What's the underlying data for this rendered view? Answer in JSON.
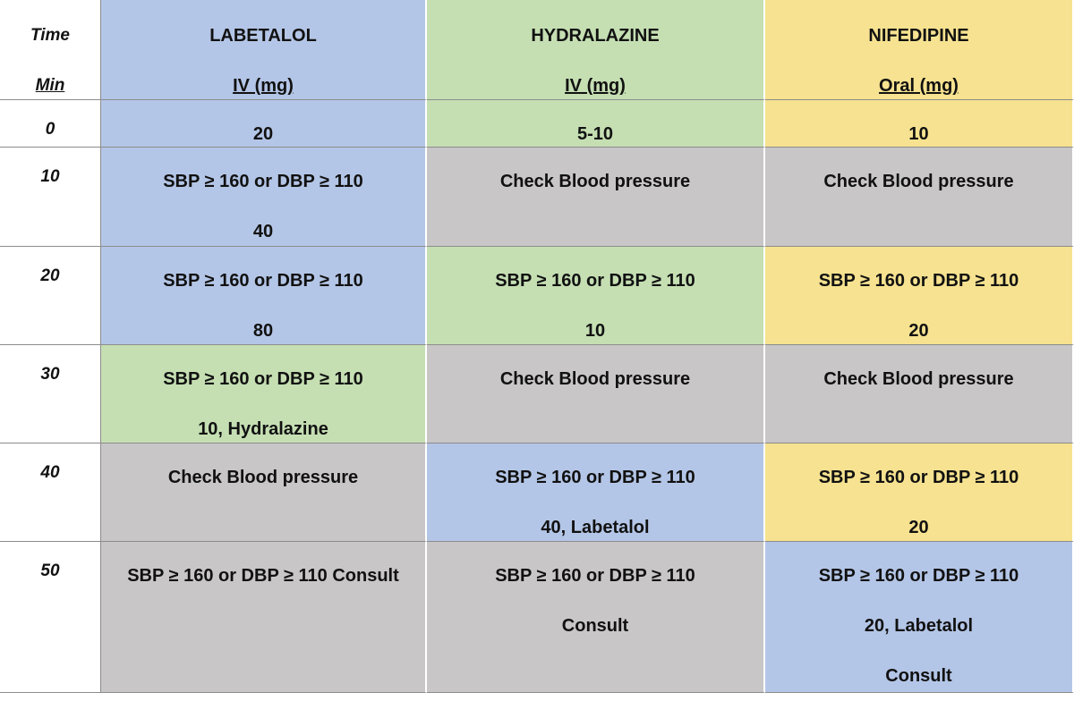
{
  "table": {
    "header": [
      {
        "lines": [
          "Time",
          "Min"
        ],
        "color": "#ffffff"
      },
      {
        "lines": [
          "LABETALOL",
          "IV (mg)"
        ],
        "color": "#b4c6e7"
      },
      {
        "lines": [
          "HYDRALAZINE",
          "IV (mg)"
        ],
        "color": "#c5dfb3"
      },
      {
        "lines": [
          "NIFEDIPINE",
          "Oral (mg)"
        ],
        "color": "#f6e290"
      }
    ],
    "rows": [
      {
        "time": "0",
        "cells": [
          {
            "lines": [
              "20"
            ],
            "color": "#b4c6e7"
          },
          {
            "lines": [
              "5-10"
            ],
            "color": "#c5dfb3"
          },
          {
            "lines": [
              "10"
            ],
            "color": "#f6e290"
          }
        ]
      },
      {
        "time": "10",
        "cells": [
          {
            "lines": [
              "SBP ≥ 160 or DBP ≥ 110",
              "40"
            ],
            "color": "#b4c6e7"
          },
          {
            "lines": [
              "Check Blood pressure"
            ],
            "color": "#c8c6c7"
          },
          {
            "lines": [
              "Check Blood pressure"
            ],
            "color": "#c8c6c7"
          }
        ]
      },
      {
        "time": "20",
        "cells": [
          {
            "lines": [
              "SBP ≥ 160 or DBP ≥ 110",
              "80"
            ],
            "color": "#b4c6e7"
          },
          {
            "lines": [
              "SBP ≥ 160 or DBP ≥ 110",
              "10"
            ],
            "color": "#c5dfb3"
          },
          {
            "lines": [
              "SBP ≥ 160 or DBP ≥ 110",
              "20"
            ],
            "color": "#f6e290"
          }
        ]
      },
      {
        "time": "30",
        "cells": [
          {
            "lines": [
              "SBP ≥ 160 or DBP ≥ 110",
              "10, Hydralazine"
            ],
            "color": "#c5dfb3"
          },
          {
            "lines": [
              "Check Blood pressure"
            ],
            "color": "#c8c6c7"
          },
          {
            "lines": [
              "Check Blood pressure"
            ],
            "color": "#c8c6c7"
          }
        ]
      },
      {
        "time": "40",
        "cells": [
          {
            "lines": [
              "Check Blood pressure"
            ],
            "color": "#c8c6c7"
          },
          {
            "lines": [
              "SBP ≥ 160 or DBP ≥ 110",
              "40, Labetalol"
            ],
            "color": "#b4c6e7"
          },
          {
            "lines": [
              "SBP ≥ 160 or DBP ≥ 110",
              "20"
            ],
            "color": "#f6e290"
          }
        ]
      },
      {
        "time": "50",
        "cells": [
          {
            "lines": [
              "SBP ≥ 160 or DBP ≥ 110 Consult"
            ],
            "color": "#c8c6c7"
          },
          {
            "lines": [
              "SBP ≥ 160 or DBP ≥ 110",
              "Consult"
            ],
            "color": "#c8c6c7"
          },
          {
            "lines": [
              "SBP ≥ 160 or DBP ≥ 110",
              "20, Labetalol",
              "Consult"
            ],
            "color": "#b4c6e7"
          }
        ]
      }
    ]
  }
}
